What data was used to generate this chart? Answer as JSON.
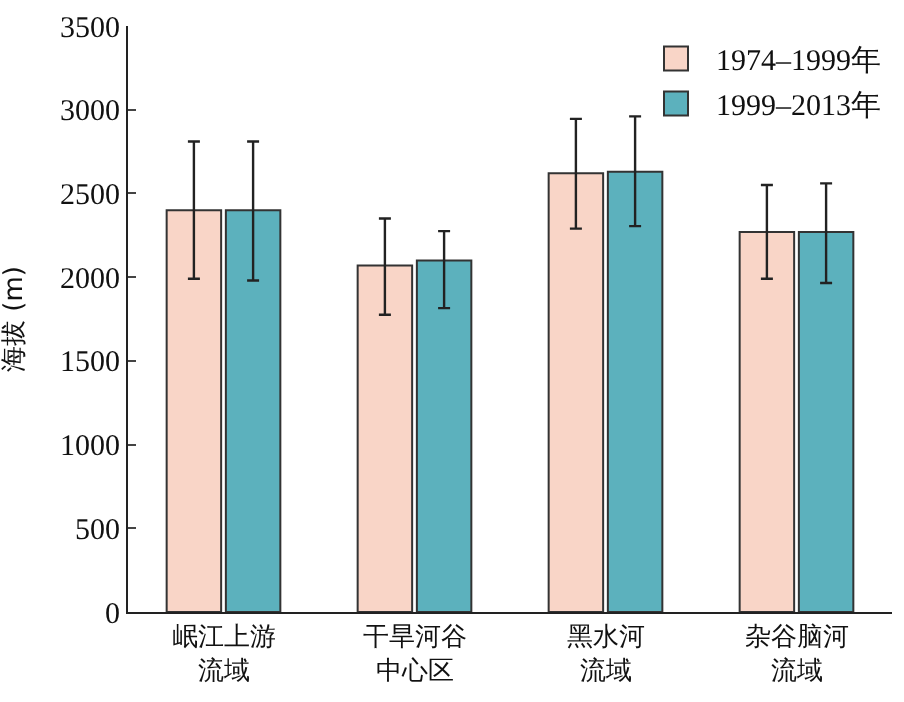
{
  "chart_data": {
    "type": "bar",
    "ylabel": "海拔 (m)",
    "categories": [
      "岷江上游流域",
      "干旱河谷中心区",
      "黑水河流域",
      "杂谷脑河流域"
    ],
    "ylim": [
      0,
      3500
    ],
    "yticks": [
      0,
      500,
      1000,
      1500,
      2000,
      2500,
      3000,
      3500
    ],
    "legend": "top right",
    "series": [
      {
        "name": "1974–1999年",
        "color": "#f9d5c7",
        "values": [
          2400,
          2070,
          2620,
          2270
        ],
        "errors": [
          [
            1990,
            2810
          ],
          [
            1775,
            2350
          ],
          [
            2290,
            2945
          ],
          [
            1990,
            2550
          ]
        ]
      },
      {
        "name": "1999–2013年",
        "color": "#5cb1bd",
        "values": [
          2400,
          2100,
          2630,
          2270
        ],
        "errors": [
          [
            1980,
            2810
          ],
          [
            1815,
            2275
          ],
          [
            2305,
            2960
          ],
          [
            1965,
            2560
          ]
        ]
      }
    ]
  }
}
